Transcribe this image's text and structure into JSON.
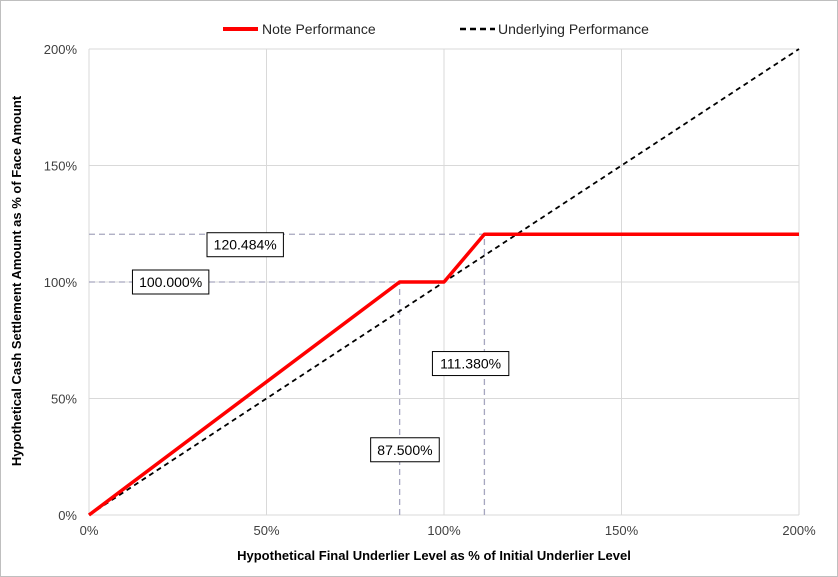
{
  "chart_data": {
    "type": "line",
    "xlabel": "Hypothetical Final Underlier Level as % of Initial Underlier Level",
    "ylabel": "Hypothetical Cash Settlement Amount as % of Face Amount",
    "xlim": [
      0,
      200
    ],
    "ylim": [
      0,
      200
    ],
    "x_ticks": [
      0,
      50,
      100,
      150,
      200
    ],
    "y_ticks": [
      0,
      50,
      100,
      150,
      200
    ],
    "x_tick_labels": [
      "0%",
      "50%",
      "100%",
      "150%",
      "200%"
    ],
    "y_tick_labels": [
      "0%",
      "50%",
      "100%",
      "150%",
      "200%"
    ],
    "grid": true,
    "legend_position": "top",
    "series": [
      {
        "name": "Note Performance",
        "color": "#ff0000",
        "style": "solid",
        "x": [
          0,
          87.5,
          100,
          111.38,
          200
        ],
        "y": [
          0,
          100,
          100,
          120.484,
          120.484
        ]
      },
      {
        "name": "Underlying Performance",
        "color": "#000000",
        "style": "dashed",
        "x": [
          0,
          200
        ],
        "y": [
          0,
          200
        ]
      }
    ],
    "reference_lines": [
      {
        "orientation": "horizontal",
        "value": 100,
        "x_to": 87.5
      },
      {
        "orientation": "horizontal",
        "value": 120.484,
        "x_to": 111.38
      },
      {
        "orientation": "vertical",
        "value": 87.5,
        "y_to": 100
      },
      {
        "orientation": "vertical",
        "value": 111.38,
        "y_to": 120.484
      }
    ],
    "annotations": [
      {
        "text": "100.000%",
        "x": 23,
        "y": 100
      },
      {
        "text": "120.484%",
        "x": 44,
        "y": 116
      },
      {
        "text": "111.380%",
        "x": 107.5,
        "y": 65
      },
      {
        "text": "87.500%",
        "x": 89,
        "y": 28
      }
    ]
  }
}
